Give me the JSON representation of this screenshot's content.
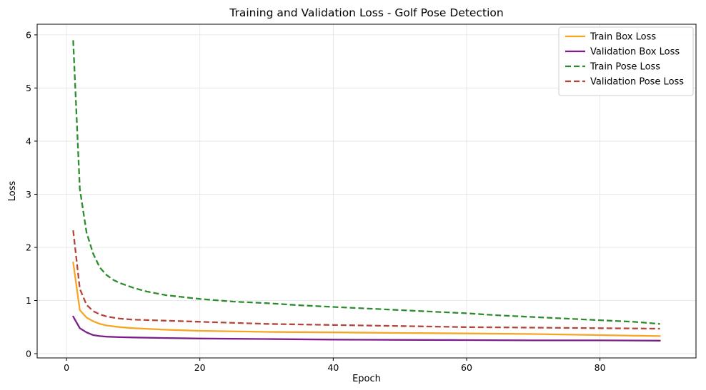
{
  "chart_data": {
    "type": "line",
    "title": "Training and Validation Loss - Golf Pose Detection",
    "xlabel": "Epoch",
    "ylabel": "Loss",
    "xlim": [
      -4.4,
      94.4
    ],
    "ylim": [
      -0.08,
      6.2
    ],
    "xticks": [
      0,
      20,
      40,
      60,
      80
    ],
    "yticks": [
      0,
      1,
      2,
      3,
      4,
      5,
      6
    ],
    "grid": true,
    "legend_position": "top-right",
    "series": [
      {
        "name": "Train Box Loss",
        "color": "#f5a623",
        "dash": "solid",
        "points": [
          [
            1,
            1.72
          ],
          [
            2,
            0.82
          ],
          [
            3,
            0.68
          ],
          [
            4,
            0.61
          ],
          [
            5,
            0.56
          ],
          [
            6,
            0.53
          ],
          [
            8,
            0.5
          ],
          [
            10,
            0.48
          ],
          [
            15,
            0.45
          ],
          [
            20,
            0.43
          ],
          [
            30,
            0.41
          ],
          [
            40,
            0.4
          ],
          [
            50,
            0.39
          ],
          [
            60,
            0.38
          ],
          [
            70,
            0.37
          ],
          [
            80,
            0.35
          ],
          [
            89,
            0.33
          ]
        ]
      },
      {
        "name": "Validation Box Loss",
        "color": "#7b1f8a",
        "dash": "solid",
        "points": [
          [
            1,
            0.7
          ],
          [
            2,
            0.48
          ],
          [
            3,
            0.4
          ],
          [
            4,
            0.35
          ],
          [
            5,
            0.33
          ],
          [
            6,
            0.32
          ],
          [
            8,
            0.31
          ],
          [
            10,
            0.305
          ],
          [
            15,
            0.295
          ],
          [
            20,
            0.285
          ],
          [
            30,
            0.275
          ],
          [
            40,
            0.265
          ],
          [
            50,
            0.26
          ],
          [
            60,
            0.255
          ],
          [
            70,
            0.25
          ],
          [
            80,
            0.25
          ],
          [
            89,
            0.245
          ]
        ]
      },
      {
        "name": "Train Pose Loss",
        "color": "#2e8b2e",
        "dash": "dashed",
        "points": [
          [
            1,
            5.9
          ],
          [
            2,
            3.1
          ],
          [
            3,
            2.28
          ],
          [
            4,
            1.88
          ],
          [
            5,
            1.62
          ],
          [
            6,
            1.48
          ],
          [
            7,
            1.39
          ],
          [
            8,
            1.33
          ],
          [
            10,
            1.24
          ],
          [
            12,
            1.17
          ],
          [
            15,
            1.1
          ],
          [
            20,
            1.03
          ],
          [
            25,
            0.98
          ],
          [
            30,
            0.95
          ],
          [
            35,
            0.91
          ],
          [
            40,
            0.88
          ],
          [
            45,
            0.85
          ],
          [
            50,
            0.82
          ],
          [
            55,
            0.79
          ],
          [
            60,
            0.76
          ],
          [
            65,
            0.72
          ],
          [
            70,
            0.69
          ],
          [
            75,
            0.66
          ],
          [
            80,
            0.63
          ],
          [
            85,
            0.6
          ],
          [
            89,
            0.56
          ]
        ]
      },
      {
        "name": "Validation Pose Loss",
        "color": "#b5453a",
        "dash": "dashed",
        "points": [
          [
            1,
            2.32
          ],
          [
            2,
            1.22
          ],
          [
            3,
            0.92
          ],
          [
            4,
            0.8
          ],
          [
            5,
            0.74
          ],
          [
            6,
            0.7
          ],
          [
            8,
            0.66
          ],
          [
            10,
            0.64
          ],
          [
            15,
            0.62
          ],
          [
            20,
            0.6
          ],
          [
            30,
            0.56
          ],
          [
            40,
            0.54
          ],
          [
            50,
            0.52
          ],
          [
            60,
            0.5
          ],
          [
            70,
            0.49
          ],
          [
            80,
            0.48
          ],
          [
            89,
            0.47
          ]
        ]
      }
    ]
  }
}
